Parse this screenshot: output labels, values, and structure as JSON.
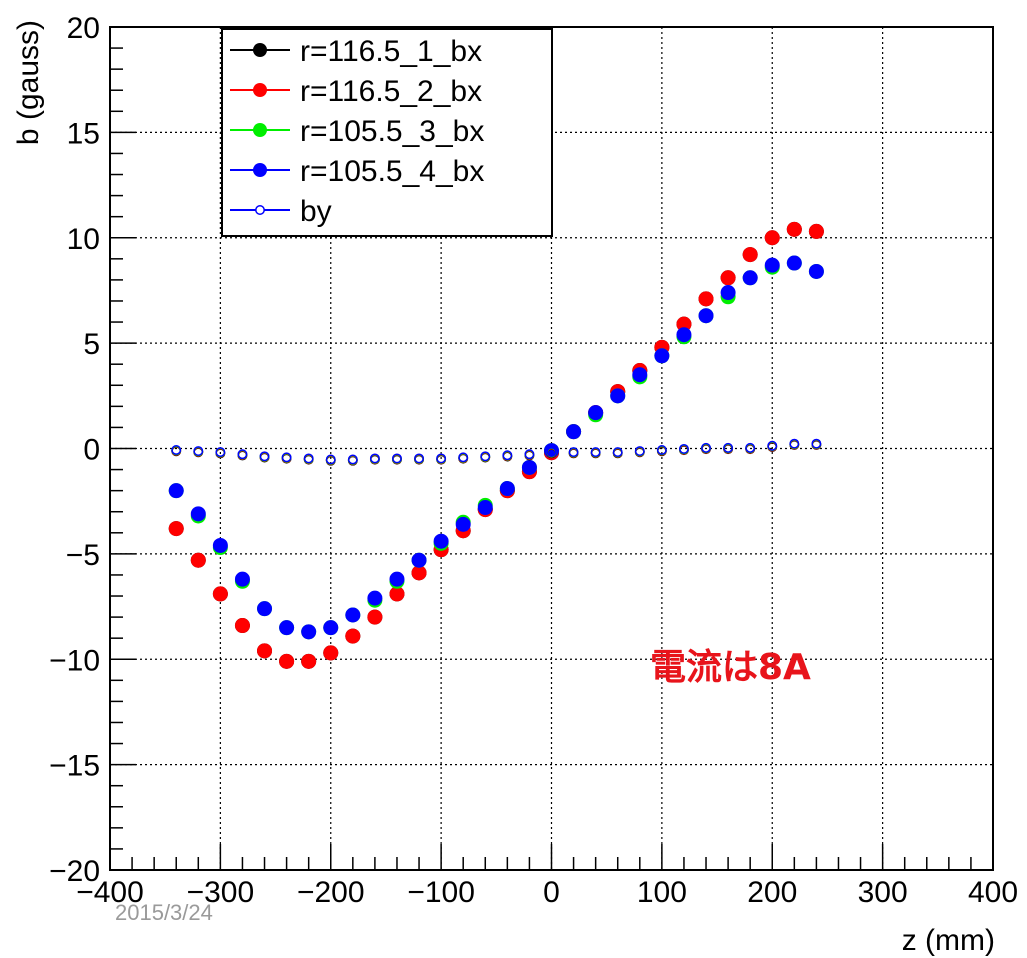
{
  "chart_data": {
    "type": "scatter",
    "xlabel": "z (mm)",
    "ylabel": "b (gauss)",
    "xlim": [
      -400,
      400
    ],
    "ylim": [
      -20,
      20
    ],
    "xticks": [
      "−400",
      "−300",
      "−200",
      "−100",
      "0",
      "100",
      "200",
      "300",
      "400"
    ],
    "yticks": [
      "−20",
      "−15",
      "−10",
      "−5",
      "0",
      "5",
      "10",
      "15",
      "20"
    ],
    "grid": true,
    "legend_position": "top-left",
    "x": [
      -340,
      -320,
      -300,
      -280,
      -260,
      -240,
      -220,
      -200,
      -180,
      -160,
      -140,
      -120,
      -100,
      -80,
      -60,
      -40,
      -20,
      0,
      20,
      40,
      60,
      80,
      100,
      120,
      140,
      160,
      180,
      200,
      220,
      240
    ],
    "series": [
      {
        "name": "r=116.5_1_bx",
        "color": "#000000",
        "marker": "filled",
        "values": [
          -3.8,
          -5.3,
          -6.9,
          -8.4,
          -9.6,
          -10.1,
          -10.1,
          -9.7,
          -8.9,
          -8.0,
          -6.9,
          -5.9,
          -4.8,
          -3.9,
          -2.9,
          -2.0,
          -1.1,
          -0.2,
          0.8,
          1.7,
          2.7,
          3.7,
          4.8,
          5.9,
          7.1,
          8.1,
          9.2,
          10.0,
          10.4,
          10.3
        ]
      },
      {
        "name": "r=116.5_2_bx",
        "color": "#ff0000",
        "marker": "filled",
        "values": [
          -3.8,
          -5.3,
          -6.9,
          -8.4,
          -9.6,
          -10.1,
          -10.1,
          -9.7,
          -8.9,
          -8.0,
          -6.9,
          -5.9,
          -4.8,
          -3.9,
          -2.9,
          -2.0,
          -1.1,
          -0.2,
          0.8,
          1.7,
          2.7,
          3.7,
          4.8,
          5.9,
          7.1,
          8.1,
          9.2,
          10.0,
          10.4,
          10.3
        ]
      },
      {
        "name": "r=105.5_3_bx",
        "color": "#00ee00",
        "marker": "filled",
        "values": [
          -2.0,
          -3.2,
          -4.7,
          -6.3,
          -7.6,
          -8.5,
          -8.7,
          -8.5,
          -7.9,
          -7.2,
          -6.3,
          -5.3,
          -4.5,
          -3.5,
          -2.7,
          -1.9,
          -0.9,
          -0.1,
          0.8,
          1.6,
          2.5,
          3.4,
          4.4,
          5.3,
          6.3,
          7.2,
          8.1,
          8.6,
          8.8,
          8.4
        ]
      },
      {
        "name": "r=105.5_4_bx",
        "color": "#0000ff",
        "marker": "filled",
        "values": [
          -2.0,
          -3.1,
          -4.6,
          -6.2,
          -7.6,
          -8.5,
          -8.7,
          -8.5,
          -7.9,
          -7.1,
          -6.2,
          -5.3,
          -4.4,
          -3.6,
          -2.8,
          -1.9,
          -0.9,
          -0.1,
          0.8,
          1.7,
          2.5,
          3.5,
          4.4,
          5.4,
          6.3,
          7.4,
          8.1,
          8.7,
          8.8,
          8.4
        ]
      },
      {
        "name": "by",
        "color": "#0000ff",
        "marker": "open",
        "values": [
          -0.1,
          -0.15,
          -0.2,
          -0.3,
          -0.4,
          -0.45,
          -0.5,
          -0.55,
          -0.55,
          -0.5,
          -0.5,
          -0.5,
          -0.5,
          -0.45,
          -0.4,
          -0.35,
          -0.3,
          -0.2,
          -0.2,
          -0.2,
          -0.2,
          -0.15,
          -0.1,
          -0.05,
          0.0,
          0.0,
          0.0,
          0.1,
          0.2,
          0.2
        ]
      }
    ],
    "by_outline_colors": [
      "#000000",
      "#ff0000",
      "#00ee00",
      "#0000ff"
    ],
    "annotations": {
      "date": "2015/3/24",
      "current": "電流は8A"
    }
  }
}
